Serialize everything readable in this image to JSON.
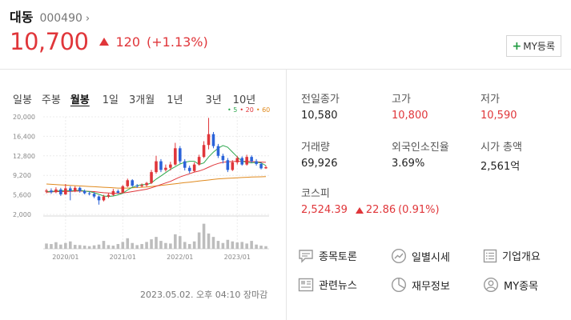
{
  "stock": {
    "name": "대동",
    "code": "000490",
    "chevron": "›",
    "price": "10,700",
    "change": "120",
    "change_rate": "(+1.13%)"
  },
  "my_button": {
    "plus": "+",
    "label": "MY등록"
  },
  "chart_tabs": [
    "일봉",
    "주봉",
    "월봉",
    "1일",
    "3개월",
    "1년",
    "3년",
    "10년"
  ],
  "active_tab": "월봉",
  "legend": {
    "ma5": "• 5",
    "ma20": "• 20",
    "ma60": "• 60"
  },
  "colors": {
    "up": "#e0363a",
    "down": "#2b63d9",
    "ma5": "#2fa84f",
    "ma20": "#e0363a",
    "ma60": "#e08a1e",
    "plus": "#1e9a3f"
  },
  "chart_data": {
    "type": "candlestick",
    "y_ticks": [
      "20,000",
      "16,400",
      "12,800",
      "9,200",
      "5,600",
      "2,000"
    ],
    "y_range": [
      2000,
      20000
    ],
    "x_ticks": [
      "2020/01",
      "2021/01",
      "2022/01",
      "2023/01"
    ],
    "candles": [
      {
        "o": 6200,
        "c": 6400,
        "h": 6700,
        "l": 5900
      },
      {
        "o": 6400,
        "c": 6100,
        "h": 6800,
        "l": 5800
      },
      {
        "o": 6100,
        "c": 6600,
        "h": 7000,
        "l": 5900
      },
      {
        "o": 6600,
        "c": 5700,
        "h": 6900,
        "l": 5400
      },
      {
        "o": 5700,
        "c": 6800,
        "h": 7600,
        "l": 5600
      },
      {
        "o": 6800,
        "c": 6300,
        "h": 7200,
        "l": 4600
      },
      {
        "o": 6300,
        "c": 6900,
        "h": 7200,
        "l": 6100
      },
      {
        "o": 6900,
        "c": 6300,
        "h": 7100,
        "l": 6000
      },
      {
        "o": 6300,
        "c": 5900,
        "h": 6600,
        "l": 5700
      },
      {
        "o": 5900,
        "c": 5800,
        "h": 6200,
        "l": 5500
      },
      {
        "o": 5800,
        "c": 5300,
        "h": 6100,
        "l": 5000
      },
      {
        "o": 5300,
        "c": 4600,
        "h": 5500,
        "l": 3800
      },
      {
        "o": 4600,
        "c": 5300,
        "h": 5600,
        "l": 4400
      },
      {
        "o": 5300,
        "c": 5600,
        "h": 5900,
        "l": 5000
      },
      {
        "o": 5600,
        "c": 6300,
        "h": 6700,
        "l": 5400
      },
      {
        "o": 6300,
        "c": 6000,
        "h": 6600,
        "l": 5800
      },
      {
        "o": 6000,
        "c": 7200,
        "h": 7400,
        "l": 5900
      },
      {
        "o": 7200,
        "c": 8300,
        "h": 8600,
        "l": 7000
      },
      {
        "o": 8300,
        "c": 7300,
        "h": 8500,
        "l": 7100
      },
      {
        "o": 7300,
        "c": 7200,
        "h": 7600,
        "l": 6900
      },
      {
        "o": 7200,
        "c": 7400,
        "h": 7700,
        "l": 7000
      },
      {
        "o": 7400,
        "c": 7800,
        "h": 8000,
        "l": 7100
      },
      {
        "o": 7800,
        "c": 9800,
        "h": 10200,
        "l": 7600
      },
      {
        "o": 9800,
        "c": 11800,
        "h": 12800,
        "l": 9500
      },
      {
        "o": 11800,
        "c": 10200,
        "h": 12200,
        "l": 9800
      },
      {
        "o": 10200,
        "c": 10600,
        "h": 11200,
        "l": 9900
      },
      {
        "o": 10600,
        "c": 11200,
        "h": 11700,
        "l": 10100
      },
      {
        "o": 11200,
        "c": 14200,
        "h": 15200,
        "l": 11000
      },
      {
        "o": 14200,
        "c": 11800,
        "h": 14600,
        "l": 11400
      },
      {
        "o": 11800,
        "c": 10600,
        "h": 12200,
        "l": 10100
      },
      {
        "o": 10600,
        "c": 10000,
        "h": 11000,
        "l": 9600
      },
      {
        "o": 10000,
        "c": 11200,
        "h": 11600,
        "l": 9800
      },
      {
        "o": 11200,
        "c": 12600,
        "h": 13000,
        "l": 11000
      },
      {
        "o": 12600,
        "c": 14800,
        "h": 15500,
        "l": 12400
      },
      {
        "o": 14800,
        "c": 16800,
        "h": 19800,
        "l": 14000
      },
      {
        "o": 16800,
        "c": 14600,
        "h": 17200,
        "l": 14200
      },
      {
        "o": 14600,
        "c": 12800,
        "h": 15000,
        "l": 12400
      },
      {
        "o": 12800,
        "c": 12000,
        "h": 13200,
        "l": 11400
      },
      {
        "o": 12000,
        "c": 10200,
        "h": 12400,
        "l": 9800
      },
      {
        "o": 10200,
        "c": 11600,
        "h": 12000,
        "l": 10000
      },
      {
        "o": 11600,
        "c": 12400,
        "h": 12800,
        "l": 11200
      },
      {
        "o": 12400,
        "c": 11200,
        "h": 12700,
        "l": 11000
      },
      {
        "o": 11200,
        "c": 12600,
        "h": 13000,
        "l": 11000
      },
      {
        "o": 12600,
        "c": 11800,
        "h": 12900,
        "l": 11500
      },
      {
        "o": 11800,
        "c": 11300,
        "h": 12200,
        "l": 11000
      },
      {
        "o": 11300,
        "c": 10500,
        "h": 11600,
        "l": 10300
      },
      {
        "o": 10500,
        "c": 10700,
        "h": 11000,
        "l": 10400
      }
    ],
    "ma5": [
      6200,
      6250,
      6300,
      6350,
      6400,
      6350,
      6400,
      6450,
      6300,
      6200,
      6000,
      5700,
      5400,
      5300,
      5400,
      5600,
      5900,
      6500,
      7000,
      7300,
      7500,
      7500,
      7800,
      8500,
      9100,
      9700,
      10300,
      10800,
      11300,
      11600,
      11800,
      11800,
      11200,
      11500,
      12600,
      13500,
      14200,
      14700,
      14400,
      13500,
      12600,
      11800,
      11600,
      11500,
      11600,
      11500,
      11000
    ],
    "ma20": [
      6100,
      6150,
      6200,
      6200,
      6250,
      6250,
      6300,
      6300,
      6300,
      6250,
      6200,
      6100,
      6000,
      5950,
      5900,
      5900,
      5950,
      6050,
      6200,
      6350,
      6500,
      6650,
      6900,
      7200,
      7500,
      7800,
      8100,
      8500,
      8900,
      9200,
      9500,
      9800,
      10000,
      10300,
      10700,
      11100,
      11400,
      11600,
      11700,
      11750,
      11800,
      11800,
      11800,
      11750,
      11700,
      11650,
      11600
    ],
    "ma60": [
      7600,
      7550,
      7500,
      7450,
      7400,
      7350,
      7300,
      7250,
      7200,
      7150,
      7100,
      7050,
      7000,
      6950,
      6900,
      6850,
      6850,
      6850,
      6900,
      6950,
      7000,
      7050,
      7150,
      7250,
      7350,
      7450,
      7550,
      7650,
      7750,
      7850,
      7950,
      8050,
      8150,
      8250,
      8350,
      8450,
      8550,
      8600,
      8650,
      8700,
      8750,
      8800,
      8850,
      8900,
      8920,
      8940,
      8960
    ],
    "volume": [
      0.2,
      0.18,
      0.25,
      0.16,
      0.22,
      0.28,
      0.15,
      0.14,
      0.12,
      0.1,
      0.13,
      0.16,
      0.3,
      0.14,
      0.12,
      0.18,
      0.26,
      0.4,
      0.22,
      0.14,
      0.18,
      0.26,
      0.36,
      0.45,
      0.3,
      0.22,
      0.2,
      0.55,
      0.48,
      0.26,
      0.18,
      0.28,
      0.62,
      0.95,
      0.58,
      0.45,
      0.3,
      0.22,
      0.34,
      0.28,
      0.24,
      0.26,
      0.2,
      0.3,
      0.16,
      0.12,
      0.1
    ],
    "y_label": "",
    "x_label": ""
  },
  "stats": {
    "prev_close": {
      "label": "전일종가",
      "value": "10,580"
    },
    "high": {
      "label": "고가",
      "value": "10,800"
    },
    "low": {
      "label": "저가",
      "value": "10,590"
    },
    "volume": {
      "label": "거래량",
      "value": "69,926"
    },
    "foreign_ratio": {
      "label": "외국인소진율",
      "value": "3.69%"
    },
    "market_cap": {
      "label": "시가 총액",
      "value": "2,561억"
    },
    "kospi": {
      "label": "코스피",
      "value": "2,524.39",
      "change": "22.86",
      "rate": "(0.91%)"
    }
  },
  "links": [
    {
      "label": "종목토론",
      "icon": "chat-icon"
    },
    {
      "label": "일별시세",
      "icon": "trend-icon"
    },
    {
      "label": "기업개요",
      "icon": "list-icon"
    },
    {
      "label": "관련뉴스",
      "icon": "news-icon"
    },
    {
      "label": "재무정보",
      "icon": "pie-icon"
    },
    {
      "label": "MY종목",
      "icon": "person-icon"
    }
  ],
  "timestamp": "2023.05.02. 오후 04:10 장마감"
}
